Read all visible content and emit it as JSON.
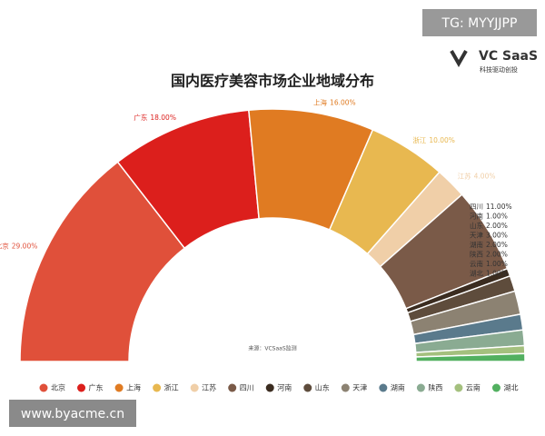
{
  "chart_data": {
    "type": "half-donut",
    "title": "国内医疗美容市场企业地域分布",
    "source": "来源：VCSaaS监测",
    "categories": [
      "北京",
      "广东",
      "上海",
      "浙江",
      "江苏",
      "四川",
      "河南",
      "山东",
      "天津",
      "湖南",
      "陕西",
      "云南",
      "湖北"
    ],
    "values": [
      29,
      18,
      16,
      10,
      4,
      11,
      1,
      2,
      3,
      2,
      2,
      1,
      1
    ],
    "value_labels": [
      "29.00%",
      "18.00%",
      "16.00%",
      "10.00%",
      "4.00%",
      "11.00%",
      "1.00%",
      "2.00%",
      "3.00%",
      "2.00%",
      "2.00%",
      "1.00%",
      "1.00%"
    ],
    "colors": [
      "#e0503a",
      "#dc1f1c",
      "#e07b22",
      "#e8b850",
      "#f0cfa8",
      "#7a5a48",
      "#3b2c20",
      "#5e4c3c",
      "#8c8272",
      "#5a7a8c",
      "#8aab92",
      "#a4c07e",
      "#52b060"
    ],
    "legend": "bottom"
  },
  "watermarks": {
    "top": "TG: MYYJJPP",
    "logo": "VC SaaS",
    "logo_sub": "科技驱动创投",
    "bottom": "www.byacme.cn"
  }
}
